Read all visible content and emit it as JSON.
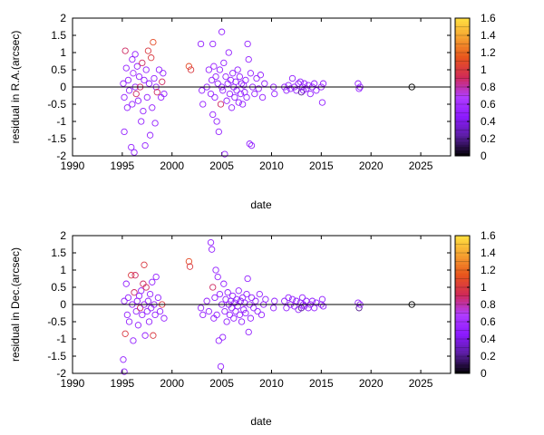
{
  "chart_data": [
    {
      "type": "scatter",
      "xlabel": "date",
      "ylabel": "residual in R.A.(arcsec)",
      "xlim": [
        1990,
        2028
      ],
      "ylim": [
        -2,
        2
      ],
      "xticks": [
        1990,
        1995,
        2000,
        2005,
        2010,
        2015,
        2020,
        2025
      ],
      "yticks": [
        -2,
        -1.5,
        -1,
        -0.5,
        0,
        0.5,
        1,
        1.5,
        2
      ],
      "grid": false,
      "zero_line": true,
      "marker": "open-circle",
      "colorbar": {
        "range": [
          0,
          1.6
        ],
        "ticks": [
          0,
          0.2,
          0.4,
          0.6,
          0.8,
          1,
          1.2,
          1.4,
          1.6
        ],
        "palette": [
          "#000000",
          "#5a1ea0",
          "#8c1aff",
          "#b03cff",
          "#d02a58",
          "#e8541c",
          "#f5a030",
          "#ffe040"
        ]
      },
      "points": [
        [
          1995.1,
          0.1,
          0.5
        ],
        [
          1995.2,
          -0.3,
          0.5
        ],
        [
          1995.2,
          -1.3,
          0.5
        ],
        [
          1995.3,
          1.05,
          0.9
        ],
        [
          1995.4,
          0.55,
          0.5
        ],
        [
          1995.5,
          -0.6,
          0.5
        ],
        [
          1995.6,
          0.2,
          0.5
        ],
        [
          1995.7,
          -0.1,
          0.5
        ],
        [
          1995.9,
          -1.75,
          0.5
        ],
        [
          1996.0,
          0.8,
          0.5
        ],
        [
          1996.0,
          -0.5,
          0.5
        ],
        [
          1996.1,
          0.4,
          0.6
        ],
        [
          1996.2,
          -1.9,
          0.5
        ],
        [
          1996.3,
          0.95,
          0.5
        ],
        [
          1996.3,
          0.0,
          0.5
        ],
        [
          1996.4,
          -0.2,
          0.9
        ],
        [
          1996.5,
          0.6,
          0.5
        ],
        [
          1996.6,
          -0.4,
          0.5
        ],
        [
          1996.7,
          0.3,
          0.5
        ],
        [
          1996.8,
          0.0,
          0.9
        ],
        [
          1996.9,
          -1.0,
          0.5
        ],
        [
          1997.0,
          0.7,
          0.9
        ],
        [
          1997.1,
          -0.7,
          0.5
        ],
        [
          1997.2,
          0.2,
          0.5
        ],
        [
          1997.3,
          -1.7,
          0.5
        ],
        [
          1997.4,
          0.5,
          0.5
        ],
        [
          1997.5,
          -0.3,
          0.5
        ],
        [
          1997.6,
          1.05,
          1.0
        ],
        [
          1997.7,
          0.1,
          0.5
        ],
        [
          1997.8,
          -1.4,
          0.5
        ],
        [
          1997.9,
          0.85,
          1.0
        ],
        [
          1998.0,
          -0.6,
          0.5
        ],
        [
          1998.1,
          1.3,
          1.1
        ],
        [
          1998.2,
          0.25,
          0.5
        ],
        [
          1998.3,
          -1.05,
          0.5
        ],
        [
          1998.4,
          0.0,
          0.5
        ],
        [
          1998.5,
          -0.15,
          0.9
        ],
        [
          1998.7,
          0.5,
          0.5
        ],
        [
          1998.9,
          -0.3,
          0.5
        ],
        [
          1999.0,
          0.15,
          0.9
        ],
        [
          1999.1,
          0.4,
          0.5
        ],
        [
          1999.2,
          -0.2,
          0.5
        ],
        [
          2001.7,
          0.6,
          1.1
        ],
        [
          2001.9,
          0.5,
          1.0
        ],
        [
          2002.9,
          1.25,
          0.5
        ],
        [
          2003.0,
          -0.1,
          0.5
        ],
        [
          2003.1,
          -0.5,
          0.5
        ],
        [
          2003.5,
          0.0,
          0.5
        ],
        [
          2003.7,
          0.5,
          0.5
        ],
        [
          2003.9,
          -0.2,
          0.5
        ],
        [
          2004.0,
          0.2,
          0.5
        ],
        [
          2004.1,
          1.25,
          0.5
        ],
        [
          2004.1,
          -0.8,
          0.5
        ],
        [
          2004.2,
          0.6,
          0.6
        ],
        [
          2004.3,
          -0.3,
          0.5
        ],
        [
          2004.4,
          0.3,
          0.5
        ],
        [
          2004.5,
          -1.0,
          0.5
        ],
        [
          2004.6,
          0.1,
          0.5
        ],
        [
          2004.7,
          -1.3,
          0.5
        ],
        [
          2004.8,
          0.5,
          0.5
        ],
        [
          2004.9,
          -0.5,
          0.9
        ],
        [
          2005.0,
          1.6,
          0.5
        ],
        [
          2005.0,
          0.0,
          0.5
        ],
        [
          2005.1,
          -0.1,
          0.5
        ],
        [
          2005.2,
          0.7,
          0.5
        ],
        [
          2005.3,
          -1.95,
          0.5
        ],
        [
          2005.4,
          0.3,
          0.5
        ],
        [
          2005.5,
          -0.4,
          0.5
        ],
        [
          2005.6,
          0.1,
          0.5
        ],
        [
          2005.7,
          1.0,
          0.5
        ],
        [
          2005.8,
          -0.2,
          0.5
        ],
        [
          2005.9,
          0.2,
          0.5
        ],
        [
          2006.0,
          -0.6,
          0.5
        ],
        [
          2006.1,
          0.4,
          0.5
        ],
        [
          2006.2,
          0.0,
          0.5
        ],
        [
          2006.3,
          -0.3,
          0.5
        ],
        [
          2006.4,
          0.15,
          0.5
        ],
        [
          2006.5,
          -0.1,
          0.5
        ],
        [
          2006.6,
          0.5,
          0.5
        ],
        [
          2006.7,
          -0.45,
          0.5
        ],
        [
          2006.8,
          0.3,
          0.5
        ],
        [
          2006.9,
          -0.2,
          0.5
        ],
        [
          2007.0,
          0.1,
          0.5
        ],
        [
          2007.1,
          -0.5,
          0.5
        ],
        [
          2007.2,
          0.05,
          0.5
        ],
        [
          2007.3,
          -0.15,
          0.5
        ],
        [
          2007.4,
          0.2,
          0.5
        ],
        [
          2007.5,
          -0.3,
          0.5
        ],
        [
          2007.6,
          1.25,
          0.5
        ],
        [
          2007.7,
          0.8,
          0.5
        ],
        [
          2007.8,
          -1.65,
          0.5
        ],
        [
          2007.9,
          0.4,
          0.5
        ],
        [
          2008.0,
          -1.7,
          0.5
        ],
        [
          2008.1,
          0.0,
          0.5
        ],
        [
          2008.3,
          -0.2,
          0.5
        ],
        [
          2008.5,
          0.25,
          0.5
        ],
        [
          2008.7,
          -0.05,
          0.5
        ],
        [
          2008.9,
          0.35,
          0.5
        ],
        [
          2009.1,
          -0.3,
          0.5
        ],
        [
          2009.3,
          0.1,
          0.5
        ],
        [
          2010.2,
          0.0,
          0.5
        ],
        [
          2010.3,
          -0.2,
          0.5
        ],
        [
          2011.3,
          0.0,
          0.5
        ],
        [
          2011.5,
          -0.1,
          0.5
        ],
        [
          2011.7,
          0.05,
          0.5
        ],
        [
          2011.9,
          -0.05,
          0.5
        ],
        [
          2012.1,
          0.25,
          0.5
        ],
        [
          2012.3,
          0.0,
          0.5
        ],
        [
          2012.5,
          -0.1,
          0.5
        ],
        [
          2012.7,
          0.1,
          0.5
        ],
        [
          2012.9,
          0.15,
          0.5
        ],
        [
          2013.0,
          -0.15,
          0.2
        ],
        [
          2013.1,
          0.0,
          0.5
        ],
        [
          2013.2,
          -0.1,
          0.5
        ],
        [
          2013.3,
          0.1,
          0.5
        ],
        [
          2013.5,
          -0.05,
          0.5
        ],
        [
          2013.7,
          0.05,
          0.5
        ],
        [
          2013.9,
          -0.2,
          0.5
        ],
        [
          2014.1,
          0.0,
          0.5
        ],
        [
          2014.3,
          0.1,
          0.5
        ],
        [
          2014.5,
          -0.1,
          0.5
        ],
        [
          2015.0,
          0.0,
          0.5
        ],
        [
          2015.1,
          -0.45,
          0.5
        ],
        [
          2015.2,
          0.1,
          0.5
        ],
        [
          2018.7,
          0.1,
          0.5
        ],
        [
          2018.8,
          -0.05,
          0.5
        ],
        [
          2018.9,
          0.0,
          0.5
        ],
        [
          2024.1,
          0.0,
          0.0
        ]
      ]
    },
    {
      "type": "scatter",
      "xlabel": "date",
      "ylabel": "residual in Dec.(arcsec)",
      "xlim": [
        1990,
        2028
      ],
      "ylim": [
        -2,
        2
      ],
      "xticks": [
        1990,
        1995,
        2000,
        2005,
        2010,
        2015,
        2020,
        2025
      ],
      "yticks": [
        -2,
        -1.5,
        -1,
        -0.5,
        0,
        0.5,
        1,
        1.5,
        2
      ],
      "grid": false,
      "zero_line": true,
      "marker": "open-circle",
      "colorbar": {
        "range": [
          0,
          1.6
        ],
        "ticks": [
          0,
          0.2,
          0.4,
          0.6,
          0.8,
          1,
          1.2,
          1.4,
          1.6
        ],
        "palette": [
          "#000000",
          "#5a1ea0",
          "#8c1aff",
          "#b03cff",
          "#d02a58",
          "#e8541c",
          "#f5a030",
          "#ffe040"
        ]
      },
      "points": [
        [
          1995.1,
          -1.6,
          0.5
        ],
        [
          1995.2,
          -1.95,
          0.5
        ],
        [
          1995.2,
          0.1,
          0.5
        ],
        [
          1995.3,
          -0.85,
          1.0
        ],
        [
          1995.4,
          0.6,
          0.5
        ],
        [
          1995.5,
          -0.3,
          0.5
        ],
        [
          1995.6,
          0.2,
          0.5
        ],
        [
          1995.7,
          -0.5,
          0.5
        ],
        [
          1995.9,
          0.85,
          1.0
        ],
        [
          1996.0,
          0.0,
          0.5
        ],
        [
          1996.1,
          -1.05,
          0.5
        ],
        [
          1996.2,
          0.35,
          0.9
        ],
        [
          1996.3,
          0.85,
          0.9
        ],
        [
          1996.4,
          -0.2,
          0.5
        ],
        [
          1996.5,
          0.1,
          0.5
        ],
        [
          1996.6,
          -0.6,
          0.5
        ],
        [
          1996.7,
          0.25,
          0.5
        ],
        [
          1996.8,
          -0.1,
          0.9
        ],
        [
          1996.9,
          0.4,
          0.5
        ],
        [
          1997.0,
          -0.3,
          0.5
        ],
        [
          1997.1,
          0.6,
          0.9
        ],
        [
          1997.2,
          1.15,
          1.0
        ],
        [
          1997.2,
          0.0,
          0.5
        ],
        [
          1997.3,
          -0.9,
          0.5
        ],
        [
          1997.4,
          0.5,
          0.9
        ],
        [
          1997.5,
          -0.2,
          0.5
        ],
        [
          1997.6,
          0.1,
          0.5
        ],
        [
          1997.7,
          -0.5,
          0.5
        ],
        [
          1997.8,
          0.3,
          0.5
        ],
        [
          1997.9,
          -0.1,
          0.5
        ],
        [
          1998.0,
          0.65,
          0.5
        ],
        [
          1998.1,
          -0.9,
          1.0
        ],
        [
          1998.2,
          0.0,
          0.5
        ],
        [
          1998.3,
          -0.3,
          0.5
        ],
        [
          1998.4,
          0.8,
          0.5
        ],
        [
          1998.6,
          0.2,
          0.5
        ],
        [
          1998.8,
          -0.2,
          0.5
        ],
        [
          1999.0,
          0.0,
          1.0
        ],
        [
          1999.2,
          -0.4,
          0.5
        ],
        [
          2001.7,
          1.25,
          1.1
        ],
        [
          2001.8,
          1.1,
          1.0
        ],
        [
          2002.9,
          -0.1,
          0.5
        ],
        [
          2003.1,
          -0.3,
          0.5
        ],
        [
          2003.5,
          0.1,
          0.5
        ],
        [
          2003.7,
          -0.2,
          0.5
        ],
        [
          2003.9,
          1.8,
          0.5
        ],
        [
          2004.0,
          1.6,
          0.5
        ],
        [
          2004.1,
          0.5,
          0.9
        ],
        [
          2004.2,
          -0.4,
          0.5
        ],
        [
          2004.3,
          0.2,
          0.5
        ],
        [
          2004.4,
          1.0,
          0.5
        ],
        [
          2004.5,
          -0.3,
          0.5
        ],
        [
          2004.6,
          0.8,
          0.5
        ],
        [
          2004.7,
          -1.05,
          0.5
        ],
        [
          2004.8,
          0.3,
          0.5
        ],
        [
          2004.9,
          -1.8,
          0.5
        ],
        [
          2005.0,
          0.0,
          0.5
        ],
        [
          2005.1,
          -0.95,
          0.5
        ],
        [
          2005.2,
          0.6,
          0.5
        ],
        [
          2005.3,
          -0.2,
          0.5
        ],
        [
          2005.4,
          0.15,
          0.5
        ],
        [
          2005.5,
          -0.5,
          0.5
        ],
        [
          2005.6,
          0.35,
          0.5
        ],
        [
          2005.7,
          0.0,
          0.5
        ],
        [
          2005.8,
          -0.3,
          0.5
        ],
        [
          2005.9,
          0.1,
          0.5
        ],
        [
          2006.0,
          -0.1,
          0.5
        ],
        [
          2006.1,
          0.25,
          0.5
        ],
        [
          2006.2,
          -0.4,
          0.5
        ],
        [
          2006.3,
          0.05,
          0.5
        ],
        [
          2006.4,
          -0.2,
          0.5
        ],
        [
          2006.5,
          0.15,
          0.5
        ],
        [
          2006.6,
          -0.05,
          0.5
        ],
        [
          2006.7,
          0.4,
          0.5
        ],
        [
          2006.8,
          -0.3,
          0.5
        ],
        [
          2006.9,
          0.1,
          0.5
        ],
        [
          2007.0,
          -0.5,
          0.5
        ],
        [
          2007.1,
          0.2,
          0.5
        ],
        [
          2007.2,
          -0.15,
          0.5
        ],
        [
          2007.3,
          0.05,
          0.5
        ],
        [
          2007.4,
          -0.25,
          0.5
        ],
        [
          2007.5,
          0.3,
          0.5
        ],
        [
          2007.6,
          0.75,
          0.5
        ],
        [
          2007.7,
          -0.8,
          0.5
        ],
        [
          2007.8,
          0.0,
          0.5
        ],
        [
          2007.9,
          -0.4,
          0.5
        ],
        [
          2008.0,
          0.2,
          0.5
        ],
        [
          2008.2,
          -0.1,
          0.5
        ],
        [
          2008.4,
          0.1,
          0.5
        ],
        [
          2008.6,
          -0.2,
          0.5
        ],
        [
          2008.8,
          0.3,
          0.5
        ],
        [
          2009.0,
          -0.3,
          0.5
        ],
        [
          2009.2,
          0.0,
          0.5
        ],
        [
          2009.4,
          0.15,
          0.5
        ],
        [
          2010.2,
          -0.1,
          0.5
        ],
        [
          2010.3,
          0.1,
          0.5
        ],
        [
          2011.3,
          0.1,
          0.5
        ],
        [
          2011.5,
          -0.1,
          0.5
        ],
        [
          2011.7,
          0.2,
          0.5
        ],
        [
          2011.9,
          0.0,
          0.5
        ],
        [
          2012.1,
          0.15,
          0.5
        ],
        [
          2012.3,
          -0.05,
          0.5
        ],
        [
          2012.5,
          0.1,
          0.5
        ],
        [
          2012.7,
          -0.15,
          0.5
        ],
        [
          2012.9,
          0.05,
          0.5
        ],
        [
          2013.0,
          -0.1,
          0.2
        ],
        [
          2013.1,
          0.2,
          0.5
        ],
        [
          2013.2,
          0.0,
          0.5
        ],
        [
          2013.3,
          -0.05,
          0.5
        ],
        [
          2013.5,
          0.1,
          0.5
        ],
        [
          2013.7,
          -0.1,
          0.5
        ],
        [
          2013.9,
          0.0,
          0.5
        ],
        [
          2014.1,
          0.1,
          0.5
        ],
        [
          2014.3,
          -0.1,
          0.5
        ],
        [
          2014.5,
          0.05,
          0.5
        ],
        [
          2015.0,
          0.0,
          0.5
        ],
        [
          2015.1,
          0.15,
          0.5
        ],
        [
          2015.2,
          -0.05,
          0.5
        ],
        [
          2018.7,
          0.05,
          0.5
        ],
        [
          2018.8,
          -0.1,
          0.2
        ],
        [
          2018.9,
          0.0,
          0.5
        ],
        [
          2024.1,
          0.0,
          0.0
        ]
      ]
    }
  ]
}
